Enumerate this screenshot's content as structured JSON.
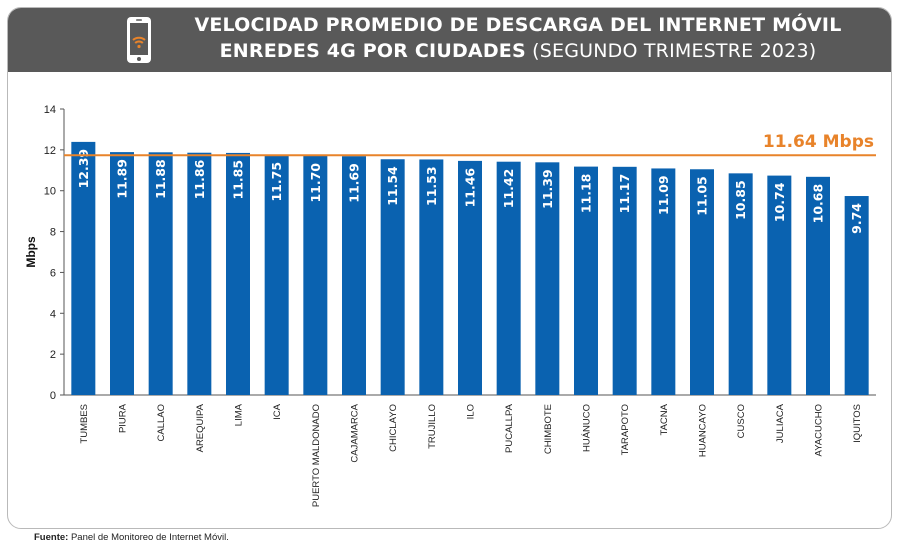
{
  "header": {
    "title_line1": "VELOCIDAD PROMEDIO DE DESCARGA DEL INTERNET MÓVIL",
    "title_line2_bold": "ENREDES 4G POR CIUDADES",
    "title_line2_light": " (SEGUNDO TRIMESTRE 2023)"
  },
  "icons": {
    "header_icon": "smartphone-wifi-icon"
  },
  "colors": {
    "header_bg": "#595959",
    "bar": "#0a62b0",
    "average_line": "#e8832a",
    "axis": "#555555",
    "text": "#222222"
  },
  "source": {
    "label": "Fuente:",
    "text": " Panel de Monitoreo de Internet Móvil."
  },
  "chart_data": {
    "type": "bar",
    "title": "VELOCIDAD PROMEDIO DE DESCARGA DEL INTERNET MÓVIL ENREDES 4G POR CIUDADES (SEGUNDO TRIMESTRE 2023)",
    "xlabel": "",
    "ylabel": "Mbps",
    "ylim": [
      0,
      14
    ],
    "yticks": [
      0,
      2,
      4,
      6,
      8,
      10,
      12,
      14
    ],
    "ytick_labels": [
      "0",
      "2",
      "4",
      "6",
      "8",
      "10",
      "12",
      "14"
    ],
    "grid": false,
    "categories": [
      "TUMBES",
      "PIURA",
      "CALLAO",
      "AREQUIPA",
      "LIMA",
      "ICA",
      "PUERTO MALDONADO",
      "CAJAMARCA",
      "CHICLAYO",
      "TRUJILLO",
      "ILO",
      "PUCALLPA",
      "CHIMBOTE",
      "HUÁNUCO",
      "TARAPOTO",
      "TACNA",
      "HUANCAYO",
      "CUSCO",
      "JULIACA",
      "AYACUCHO",
      "IQUITOS"
    ],
    "values": [
      12.39,
      11.89,
      11.88,
      11.86,
      11.85,
      11.75,
      11.7,
      11.69,
      11.54,
      11.53,
      11.46,
      11.42,
      11.39,
      11.18,
      11.17,
      11.09,
      11.05,
      10.85,
      10.74,
      10.68,
      9.74
    ],
    "value_labels": [
      "12.39",
      "11.89",
      "11.88",
      "11.86",
      "11.85",
      "11.75",
      "11.70",
      "11.69",
      "11.54",
      "11.53",
      "11.46",
      "11.42",
      "11.39",
      "11.18",
      "11.17",
      "11.09",
      "11.05",
      "10.85",
      "10.74",
      "10.68",
      "9.74"
    ],
    "reference_line": {
      "value": 11.64,
      "label": "11.64 Mbps"
    }
  }
}
